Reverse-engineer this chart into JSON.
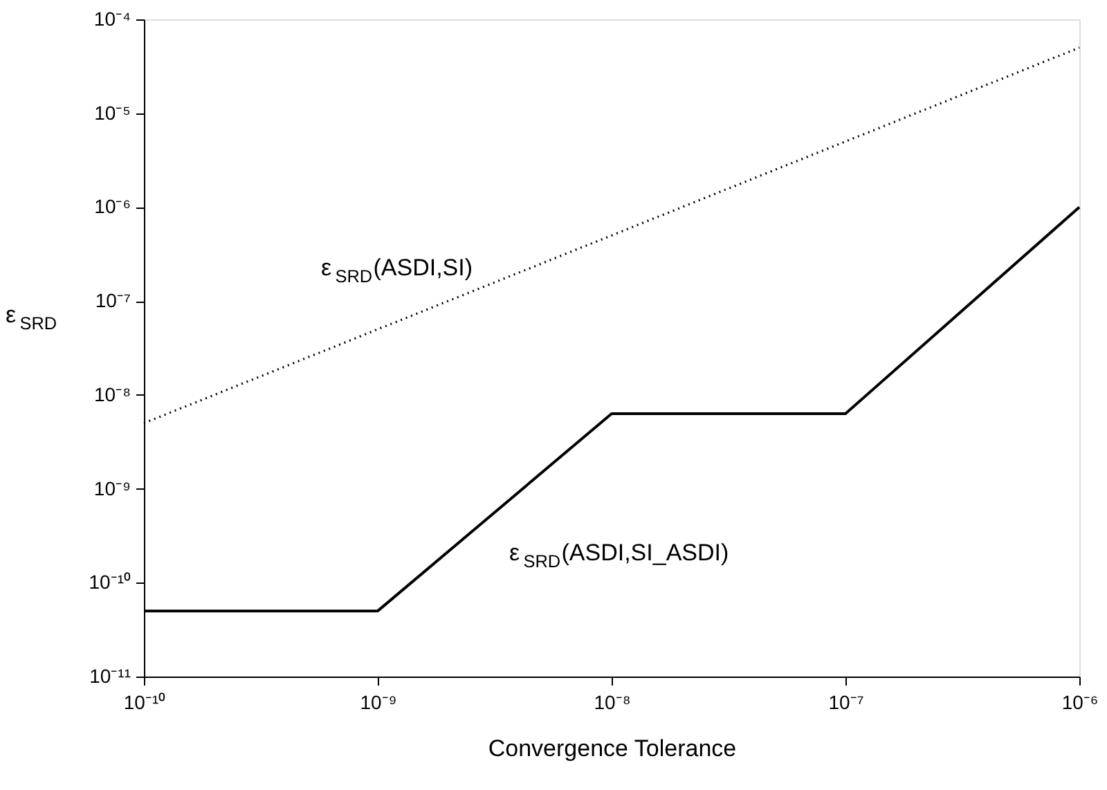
{
  "chart_data": {
    "type": "line",
    "xlabel": "Convergence Tolerance",
    "ylabel": "ε$_{SRD}$",
    "log": "xy",
    "grid": false,
    "marker": "none",
    "xlim": [
      1e-10,
      1e-06
    ],
    "ylim": [
      1e-11,
      0.0001
    ],
    "xticks": [
      {
        "value": 1e-10,
        "label": "10⁻¹⁰"
      },
      {
        "value": 1e-09,
        "label": "10⁻⁹"
      },
      {
        "value": 1e-08,
        "label": "10⁻⁸"
      },
      {
        "value": 1e-07,
        "label": "10⁻⁷"
      },
      {
        "value": 1e-06,
        "label": "10⁻⁶"
      }
    ],
    "yticks": [
      {
        "value": 1e-11,
        "label": "10⁻¹¹"
      },
      {
        "value": 1e-10,
        "label": "10⁻¹⁰"
      },
      {
        "value": 1e-09,
        "label": "10⁻⁹"
      },
      {
        "value": 1e-08,
        "label": "10⁻⁸"
      },
      {
        "value": 1e-07,
        "label": "10⁻⁷"
      },
      {
        "value": 1e-06,
        "label": "10⁻⁶"
      },
      {
        "value": 1e-05,
        "label": "10⁻⁵"
      },
      {
        "value": 0.0001,
        "label": "10⁻⁴"
      }
    ],
    "series": [
      {
        "color": "#000000",
        "line_style": "dotted",
        "x": [
          1e-10,
          1e-06
        ],
        "values": [
          5e-09,
          5e-05
        ]
      },
      {
        "color": "#000000",
        "line_style": "solid",
        "x": [
          1e-10,
          1e-09,
          1e-08,
          1e-07,
          1e-06
        ],
        "values": [
          5e-11,
          5e-11,
          6.3e-09,
          6.3e-09,
          1e-06
        ]
      }
    ],
    "annotations": [
      "ε$_{SRD}$(ASDI,SI)",
      "ε$_{SRD}$(ASDI,SI_ASDI)"
    ]
  }
}
